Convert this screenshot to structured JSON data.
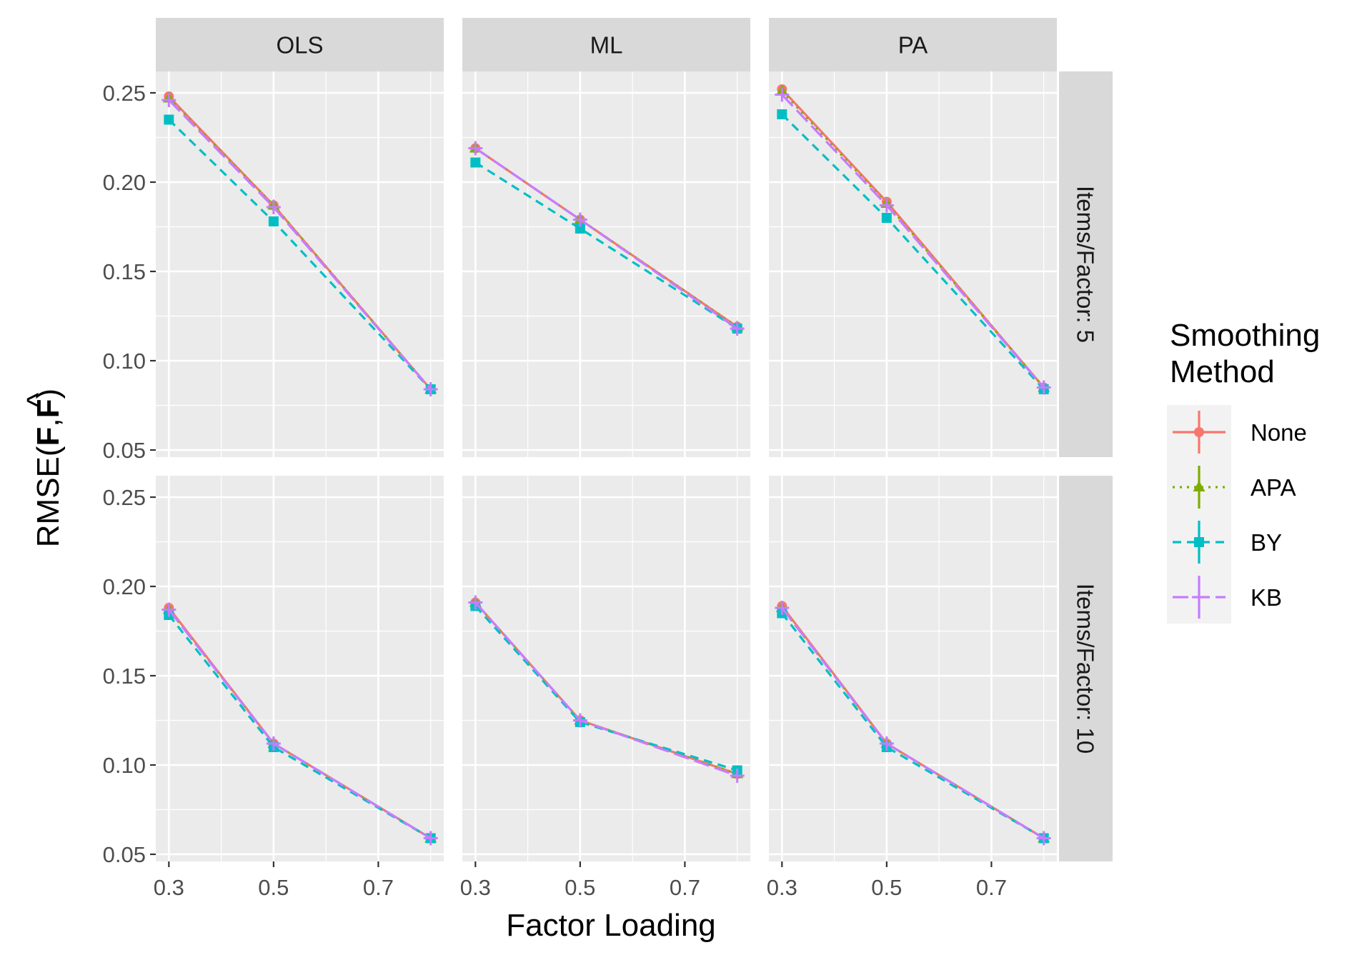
{
  "chart_data": {
    "type": "line",
    "xlabel": "Factor Loading",
    "ylabel_prefix": "RMSE(",
    "ylabel_f": "F",
    "ylabel_comma": ",",
    "ylabel_fhat": "F",
    "ylabel_hat": "^",
    "ylabel_suffix": ")",
    "columns": [
      "OLS",
      "ML",
      "PA"
    ],
    "rows": [
      "Items/Factor: 5",
      "Items/Factor: 10"
    ],
    "x": [
      0.3,
      0.5,
      0.8
    ],
    "x_ticks": [
      0.3,
      0.5,
      0.7
    ],
    "x_tick_labels": [
      "0.3",
      "0.5",
      "0.7"
    ],
    "xlim": [
      0.275,
      0.825
    ],
    "y_ticks": [
      0.05,
      0.1,
      0.15,
      0.2,
      0.25
    ],
    "y_tick_labels": [
      "0.05",
      "0.10",
      "0.15",
      "0.20",
      "0.25"
    ],
    "ylim": [
      0.046,
      0.262
    ],
    "grid": true,
    "legend": {
      "title_line1": "Smoothing",
      "title_line2": "Method",
      "position": "right"
    },
    "series": [
      {
        "name": "None",
        "color": "#F8766D",
        "marker": "circle",
        "dash": "solid"
      },
      {
        "name": "APA",
        "color": "#7CAE00",
        "marker": "triangle",
        "dash": "dotted"
      },
      {
        "name": "BY",
        "color": "#00BFC4",
        "marker": "square",
        "dash": "dashed"
      },
      {
        "name": "KB",
        "color": "#C77CFF",
        "marker": "plus",
        "dash": "longdash"
      }
    ],
    "panels": [
      {
        "row": 0,
        "col": 0,
        "values": {
          "None": [
            0.248,
            0.187,
            0.084
          ],
          "APA": [
            0.247,
            0.187,
            0.084
          ],
          "BY": [
            0.235,
            0.178,
            0.084
          ],
          "KB": [
            0.246,
            0.186,
            0.084
          ]
        }
      },
      {
        "row": 0,
        "col": 1,
        "values": {
          "None": [
            0.219,
            0.179,
            0.119
          ],
          "APA": [
            0.219,
            0.179,
            0.119
          ],
          "BY": [
            0.211,
            0.174,
            0.118
          ],
          "KB": [
            0.219,
            0.179,
            0.118
          ]
        }
      },
      {
        "row": 0,
        "col": 2,
        "values": {
          "None": [
            0.252,
            0.189,
            0.085
          ],
          "APA": [
            0.251,
            0.188,
            0.085
          ],
          "BY": [
            0.238,
            0.18,
            0.084
          ],
          "KB": [
            0.249,
            0.187,
            0.085
          ]
        }
      },
      {
        "row": 1,
        "col": 0,
        "values": {
          "None": [
            0.188,
            0.112,
            0.059
          ],
          "APA": [
            0.187,
            0.112,
            0.059
          ],
          "BY": [
            0.184,
            0.11,
            0.059
          ],
          "KB": [
            0.187,
            0.112,
            0.059
          ]
        }
      },
      {
        "row": 1,
        "col": 1,
        "values": {
          "None": [
            0.191,
            0.125,
            0.095
          ],
          "APA": [
            0.191,
            0.125,
            0.095
          ],
          "BY": [
            0.189,
            0.124,
            0.097
          ],
          "KB": [
            0.191,
            0.125,
            0.094
          ]
        }
      },
      {
        "row": 1,
        "col": 2,
        "values": {
          "None": [
            0.189,
            0.112,
            0.059
          ],
          "APA": [
            0.188,
            0.112,
            0.059
          ],
          "BY": [
            0.185,
            0.11,
            0.059
          ],
          "KB": [
            0.188,
            0.112,
            0.059
          ]
        }
      }
    ]
  }
}
